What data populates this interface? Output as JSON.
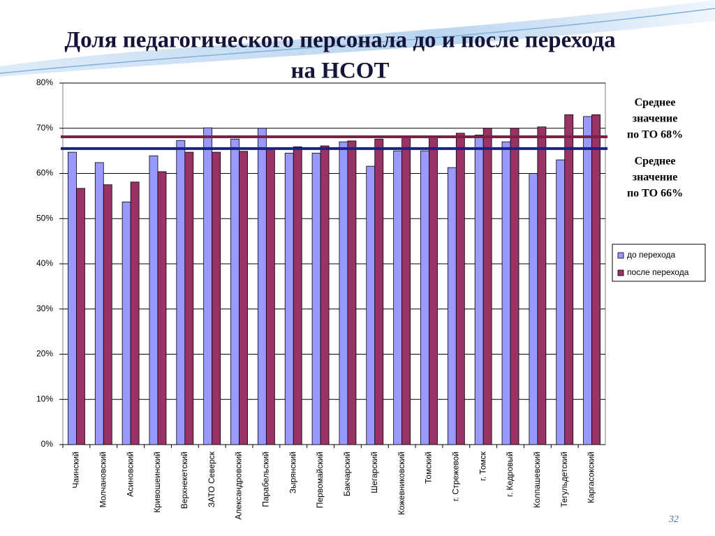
{
  "chart_data": {
    "type": "bar",
    "title_lines": [
      "Доля педагогического персонала до и после перехода",
      "на НСОТ"
    ],
    "categories": [
      "Чаинский",
      "Молчановский",
      "Асиновский",
      "Кривошеинский",
      "Верхнекетский",
      "ЗАТО Северск",
      "Александровский",
      "Парабельский",
      "Зырянский",
      "Первомайский",
      "Бакчарский",
      "Шегарский",
      "Кожевниковский",
      "Томский",
      "г. Стрежевой",
      "г. Томск",
      "г. Кедровый",
      "Колпашевский",
      "Тегульдетский",
      "Каргасокский"
    ],
    "series": [
      {
        "name": "до перехода",
        "color": "#9999ff",
        "values": [
          64.7,
          62.4,
          53.7,
          63.9,
          67.3,
          70.1,
          67.6,
          70,
          64.5,
          64.5,
          67,
          61.6,
          65,
          65,
          61.3,
          68.5,
          67,
          60,
          63,
          72.6
        ]
      },
      {
        "name": "после перехода",
        "color": "#993366",
        "values": [
          56.7,
          57.5,
          58.1,
          60.4,
          64.7,
          64.7,
          64.9,
          65.5,
          65.9,
          66.1,
          67.2,
          67.6,
          68.3,
          68.3,
          68.9,
          70,
          70,
          70.3,
          73,
          73
        ]
      }
    ],
    "ylim": [
      0,
      80
    ],
    "yticks": [
      {
        "value": 0,
        "label": "0%"
      },
      {
        "value": 10,
        "label": "10%"
      },
      {
        "value": 20,
        "label": "20%"
      },
      {
        "value": 30,
        "label": "30%"
      },
      {
        "value": 40,
        "label": "40%"
      },
      {
        "value": 50,
        "label": "50%"
      },
      {
        "value": 60,
        "label": "60%"
      },
      {
        "value": 70,
        "label": "70%"
      },
      {
        "value": 80,
        "label": "80%"
      }
    ],
    "grid": true,
    "reference_lines": [
      {
        "value": 68.1,
        "color": "#7b1f45",
        "label_lines": [
          "Среднее",
          "значение",
          "по ТО 68%"
        ]
      },
      {
        "value": 65.5,
        "color": "#1a237e",
        "label_lines": [
          "Среднее",
          "значение",
          "по ТО 66%"
        ]
      }
    ],
    "legend": "right",
    "page_number": "32"
  }
}
